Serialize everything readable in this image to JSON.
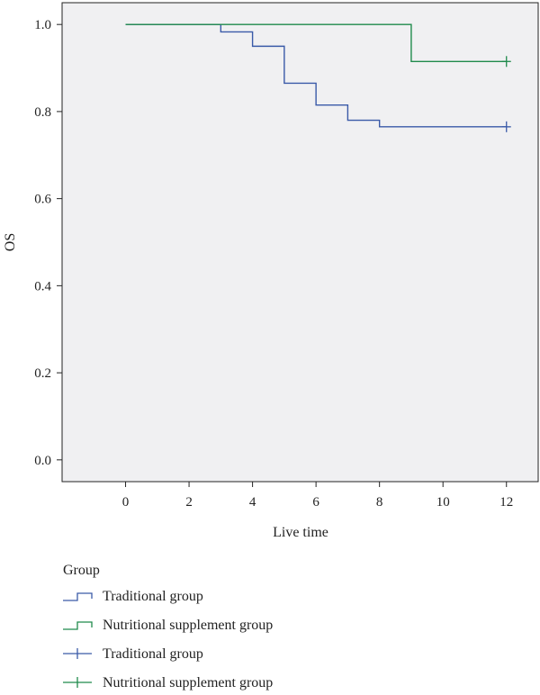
{
  "chart_data": {
    "type": "line",
    "title": "",
    "xlabel": "Live time",
    "ylabel": "OS",
    "xlim": [
      -2,
      13
    ],
    "ylim": [
      -0.05,
      1.05
    ],
    "x_ticks": [
      0,
      2,
      4,
      6,
      8,
      10,
      12
    ],
    "x_tick_labels": [
      "0",
      "2",
      "4",
      "6",
      "8",
      "10",
      "12"
    ],
    "y_ticks": [
      0.0,
      0.2,
      0.4,
      0.6,
      0.8,
      1.0
    ],
    "y_tick_labels": [
      "0.0",
      "0.2",
      "0.4",
      "0.6",
      "0.8",
      "1.0"
    ],
    "grid": false,
    "plot_background": "#f0f0f2",
    "series": [
      {
        "name": "Traditional group",
        "color": "#3a5aa8",
        "step": true,
        "points": [
          [
            0,
            1.0
          ],
          [
            3,
            0.983
          ],
          [
            4,
            0.95
          ],
          [
            5,
            0.865
          ],
          [
            6,
            0.815
          ],
          [
            7,
            0.78
          ],
          [
            8,
            0.765
          ],
          [
            12,
            0.765
          ]
        ],
        "censored": [
          [
            12,
            0.765
          ]
        ]
      },
      {
        "name": "Nutritional supplement group",
        "color": "#1f8a4c",
        "step": true,
        "points": [
          [
            0,
            1.0
          ],
          [
            9,
            0.915
          ],
          [
            12,
            0.915
          ]
        ],
        "censored": [
          [
            12,
            0.915
          ]
        ]
      }
    ],
    "legend": {
      "title": "Group",
      "placement": "bottom-left",
      "entries": [
        {
          "label": "Traditional group",
          "marker": "step",
          "color": "#3a5aa8"
        },
        {
          "label": "Nutritional supplement group",
          "marker": "step",
          "color": "#1f8a4c"
        },
        {
          "label": "Traditional group",
          "marker": "censor",
          "color": "#3a5aa8"
        },
        {
          "label": "Nutritional supplement group",
          "marker": "censor",
          "color": "#1f8a4c"
        }
      ]
    }
  }
}
